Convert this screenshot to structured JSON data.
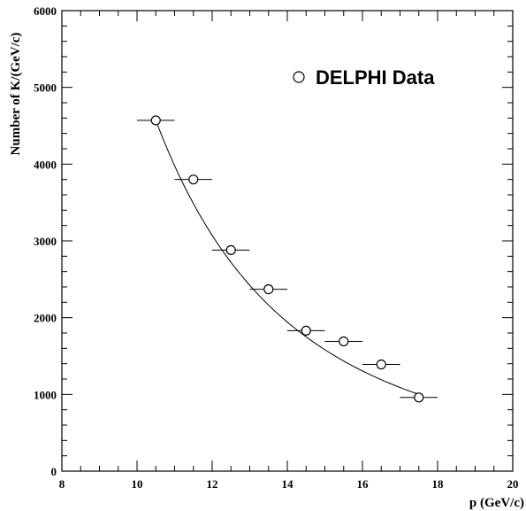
{
  "chart_data": {
    "type": "scatter",
    "xlabel": "p (GeV/c)",
    "ylabel": "Number of K/(GeV/c)",
    "xlim": [
      8,
      20
    ],
    "ylim": [
      0,
      6000
    ],
    "x_ticks": [
      "8",
      "10",
      "12",
      "14",
      "16",
      "18",
      "20"
    ],
    "y_ticks": [
      "0",
      "1000",
      "2000",
      "3000",
      "4000",
      "5000",
      "6000"
    ],
    "grid": false,
    "legend_position": "top-right",
    "series": [
      {
        "name": "DELPHI Data",
        "marker": "open-circle",
        "x": [
          10.5,
          11.5,
          12.5,
          13.5,
          14.5,
          15.5,
          16.5,
          17.5
        ],
        "x_err": [
          0.5,
          0.5,
          0.5,
          0.5,
          0.5,
          0.5,
          0.5,
          0.5
        ],
        "y": [
          4570,
          3800,
          2880,
          2370,
          1830,
          1690,
          1390,
          960
        ],
        "y_err": [
          60,
          50,
          50,
          40,
          40,
          40,
          40,
          30
        ]
      }
    ],
    "fit_curve": {
      "x_range": [
        10.5,
        17.5
      ],
      "y_start": 4570,
      "y_end": 1000,
      "exponent": -0.26
    },
    "colors": {
      "axis": "#000000",
      "marker_fill": "#ffffff",
      "line": "#000000"
    }
  }
}
